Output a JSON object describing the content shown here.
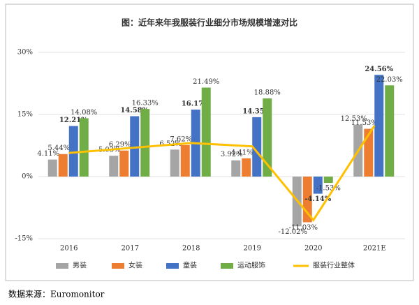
{
  "chart_data": {
    "type": "bar",
    "title": "图：近年来年我服装行业细分市场规模增速对比",
    "categories": [
      "2016",
      "2017",
      "2018",
      "2019",
      "2020",
      "2021E"
    ],
    "series": [
      {
        "name": "男装",
        "color": "#a5a5a5",
        "values": [
          4.11,
          5.03,
          6.52,
          3.92,
          -12.02,
          12.53
        ],
        "value_labels": [
          "4.11%",
          "5.03%",
          "6.52%",
          "3.92%",
          "-12.02%",
          "12.53%"
        ]
      },
      {
        "name": "女装",
        "color": "#ed7d31",
        "values": [
          5.44,
          6.29,
          7.62,
          4.41,
          -11.03,
          11.53
        ],
        "value_labels": [
          "5.44%",
          "6.29%",
          "7.62%",
          "4.41%",
          "-11.03%",
          "11.53%"
        ]
      },
      {
        "name": "童装",
        "color": "#4472c4",
        "values": [
          12.21,
          14.58,
          16.17,
          14.35,
          -4.14,
          24.56
        ],
        "value_labels": [
          "12.21%",
          "14.58%",
          "16.17%",
          "14.35%",
          "-4.14%",
          "24.56%"
        ]
      },
      {
        "name": "运动服饰",
        "color": "#70ad47",
        "values": [
          14.08,
          16.33,
          21.49,
          18.88,
          -1.53,
          22.03
        ],
        "value_labels": [
          "14.08%",
          "16.33%",
          "21.49%",
          "18.88%",
          "-1.53%",
          "22.03%"
        ]
      },
      {
        "name": "服装行业整体",
        "color": "#ffc000",
        "type": "line",
        "values": [
          5.7,
          6.9,
          8.1,
          7.3,
          -10.5,
          12.3
        ]
      }
    ],
    "ylim": [
      -15,
      30
    ],
    "yticks": [
      {
        "value": -15,
        "label": "-15%"
      },
      {
        "value": 0,
        "label": "0%"
      },
      {
        "value": 15,
        "label": "15%"
      },
      {
        "value": 30,
        "label": "30%"
      }
    ],
    "grid": true,
    "legend": "bottom",
    "source": "数据来源：Euromonitor"
  }
}
